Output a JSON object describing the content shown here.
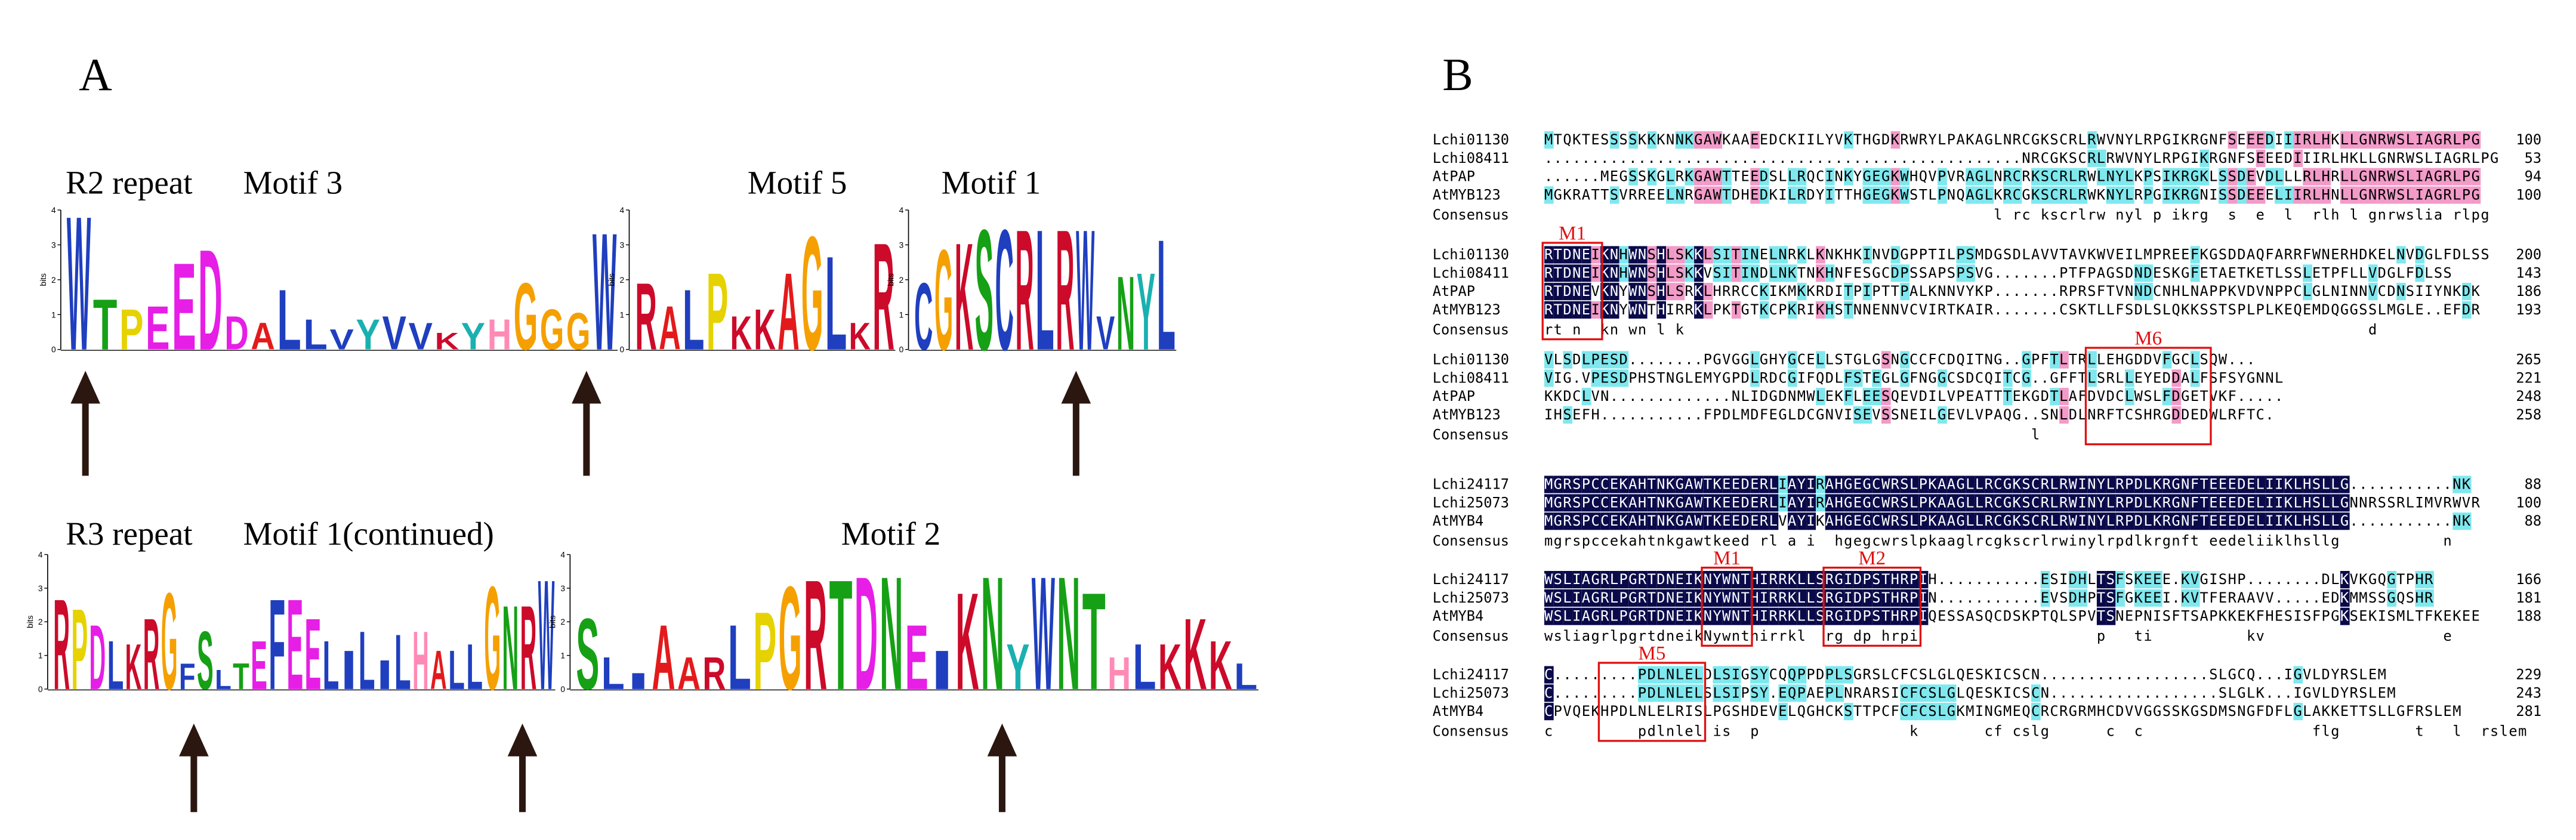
{
  "panel_a": {
    "label": "A",
    "bits_label": "bits",
    "ylim": [
      0,
      4
    ],
    "yticks": [
      0,
      1,
      2,
      3,
      4
    ],
    "titles": [
      "R2 repeat",
      "Motif 3",
      "Motif 5",
      "Motif 1",
      "R3 repeat",
      "Motif 1(continued)",
      "Motif 2"
    ],
    "logos": [
      {
        "letters": [
          "W",
          "T",
          "P",
          "E",
          "E",
          "D",
          "D",
          "A",
          "L",
          "L",
          "V",
          "Y",
          "V",
          "V",
          "K",
          "Y",
          "H",
          "G",
          "G",
          "G",
          "W"
        ],
        "heights": [
          4,
          1.5,
          1.2,
          1.3,
          2.6,
          3.0,
          1.0,
          0.8,
          1.8,
          0.9,
          0.6,
          0.9,
          1.0,
          0.8,
          0.5,
          0.8,
          0.9,
          2.0,
          1.2,
          1.1,
          3.5
        ]
      },
      {
        "letters": [
          "R",
          "A",
          "L",
          "P",
          "K",
          "K",
          "A",
          "G",
          "L",
          "K",
          "R"
        ],
        "heights": [
          2.0,
          1.3,
          1.8,
          2.3,
          1.0,
          1.2,
          2.3,
          3.4,
          2.8,
          0.8,
          3.2
        ]
      },
      {
        "letters": [
          "C",
          "G",
          "K",
          "S",
          "C",
          "R",
          "L",
          "R",
          "W",
          "V",
          "N",
          "Y",
          "L"
        ],
        "heights": [
          2.0,
          3.0,
          3.2,
          3.6,
          3.6,
          3.6,
          3.6,
          3.6,
          3.6,
          1.0,
          2.2,
          2.3,
          3.3
        ]
      },
      {
        "letters": [
          "R",
          "P",
          "D",
          "L",
          "K",
          "R",
          "G",
          "F",
          "S",
          "L",
          "T",
          "E",
          "F",
          "E",
          "E",
          "L",
          "I",
          "L",
          "I",
          "L",
          "H",
          "A",
          "L",
          "L",
          "G",
          "N",
          "R",
          "W"
        ],
        "heights": [
          2.8,
          2.5,
          2.0,
          1.5,
          1.4,
          2.2,
          3.0,
          0.8,
          1.8,
          0.6,
          0.8,
          1.5,
          2.8,
          2.8,
          2.2,
          1.5,
          1.2,
          1.8,
          0.9,
          1.7,
          1.8,
          1.2,
          1.2,
          1.4,
          3.2,
          2.6,
          2.6,
          3.4
        ]
      },
      {
        "letters": [
          "S",
          "L",
          "I",
          "A",
          "A",
          "R",
          "L",
          "P",
          "G",
          "R",
          "T",
          "D",
          "N",
          "E",
          "I",
          "K",
          "N",
          "Y",
          "W",
          "N",
          "T",
          "H",
          "L",
          "K",
          "K",
          "K",
          "L"
        ],
        "heights": [
          2.2,
          1.0,
          0.5,
          2.0,
          1.0,
          1.0,
          2.0,
          2.4,
          3.2,
          3.4,
          3.4,
          3.5,
          3.5,
          2.0,
          1.2,
          3.0,
          3.5,
          1.4,
          3.5,
          3.5,
          3.0,
          1.0,
          1.4,
          1.4,
          2.2,
          1.5,
          0.8
        ]
      }
    ]
  },
  "letter_colors": {
    "A": "#e31a1c",
    "C": "#1f3fbf",
    "D": "#e61ee6",
    "E": "#e61ee6",
    "F": "#1f3fbf",
    "G": "#f5a000",
    "H": "#ff8ab5",
    "I": "#1f3fbf",
    "K": "#cc0a2a",
    "L": "#1f3fbf",
    "M": "#1f3fbf",
    "N": "#16a016",
    "P": "#e6d200",
    "Q": "#16a016",
    "R": "#cc0a2a",
    "S": "#16a016",
    "T": "#16a016",
    "V": "#1f3fbf",
    "W": "#1f3fbf",
    "Y": "#1ab0b0"
  },
  "panel_b": {
    "label": "B",
    "consensus_label": "Consensus",
    "blocks": [
      {
        "rows": [
          {
            "name": "Lchi01130",
            "seq": "MTQKTESSSSKKKNNKGAWKAAEEDCKIILYVKTHGDKRWRYLPAKAGLNRCGKSCRLRWVNYLRPGIKRGNFSEEEDIIIRLHKLLGNRWSLIAGRLPG",
            "end": 100
          },
          {
            "name": "Lchi08411",
            "seq": "...................................................NRCGKSCRLRWVNYLRPGIKRGNFSEEEDIIIRLHKLLGNRWSLIAGRLPG",
            "end": 53
          },
          {
            "name": "AtPAP",
            "seq": "......MEGSSKGLRKGAWTTEEDSLLRQCINKYGEGKWHQVPVRAGLNRCRKSCRLRWLNYLKPSIKRGKLSSDEVDLLLRLHRLLGNRWSLIAGRLPG",
            "end": 94
          },
          {
            "name": "AtMYB123",
            "seq": "MGKRATTSVRREELNRGAWTDHEDKILRDYITTHGEGKWSTLPNQAGLKRCGKSCRLRWKNYLRPGIKRGNISSDEEELIIRLHNLLGNRWSLIAGRLPG",
            "end": 100
          }
        ],
        "consensus": "                                                l rc kscrlrw nyl p ikrg  s  e  l  rlh l gnrwslia rlpg"
      },
      {
        "rows": [
          {
            "name": "Lchi01130",
            "seq": "RTDNEIKNHWNSHLSKKLSITINELNRKLKNKHKINVDGPPTILPSMDGSDLAVVTAVKWVEILMPREEFKGSDDAQFARRFWNERHDKELNVDGLFDLSS",
            "end": 200
          },
          {
            "name": "Lchi08411",
            "seq": "RTDNEIKNHWNSHLSKKVSITINDLNKTNKHNFESGCDPSSAPSPSVG.......PTFPAGSDNDESKGFETAETKETLSSLETPFLLVDGLFDLSS",
            "end": 143
          },
          {
            "name": "AtPAP",
            "seq": "RTDNEVKNYWNSHLSRKLHRRCCKIKMKKRDITPIPTTPALKNNVYKP.......RPRSFTVNNDCNHLNAPPKVDVNPPCLGLNINNVCDNSIIYNKDK",
            "end": 186
          },
          {
            "name": "AtMYB123",
            "seq": "RTDNEIKNYWNTHIRRKLPKTGTKCPKRIKHSTNNENNVCVIRTKAIR.......CSKTLLFSDLSLQKKSSTSPLPLKEQEMDQGGSSLMGLE..EFDR",
            "end": 193
          }
        ],
        "consensus": "rt n  kn wn l k                                                                         d"
      },
      {
        "rows": [
          {
            "name": "Lchi01130",
            "seq": "VLSDLPESD........PGVGGLGHYGCELLSTGLGSNGCCFCDQITNG..GPFTLTRLLEHGDDVFGCLSQW...",
            "end": 265
          },
          {
            "name": "Lchi08411",
            "seq": "VIG.VPESDPHSTNGLEMYGPDLRDCGIFQDLFSTEGLGFNGGCSDCQITCG..GFFTLSRLLEYEDDALFSFSYGNNL",
            "end": 221
          },
          {
            "name": "AtPAP",
            "seq": "KKDCLVN.............NLIDGDNMWLEKFLEESQEVDILVPEATTTEKGDTLAFDVDCLWSLFDGETVKF.....",
            "end": 248
          },
          {
            "name": "AtMYB123",
            "seq": "IHSEFH...........FPDLMDFEGLDCGNVISEVSSNEILGEVLVPAQG..SNLDLNRFTCSHRGDDEDWLRFTC.",
            "end": 258
          }
        ],
        "consensus": "                                                    l"
      },
      {
        "rows": [
          {
            "name": "Lchi24117",
            "seq": "MGRSPCCEKAHTNKGAWTKEEDERLIAYIRAHGEGCWRSLPKAAGLLRCGKSCRLRWINYLRPDLKRGNFTEEEDELIIKLHSLLG...........NK",
            "end": 88
          },
          {
            "name": "Lchi25073",
            "seq": "MGRSPCCEKAHTNKGAWTKEEDERLIAYIRAHGEGCWRSLPKAAGLLRCGKSCRLRWINYLRPDLKRGNFTEEEDELIIKLHSLLGNNRSSRLIMVRWVR",
            "end": 100
          },
          {
            "name": "AtMYB4",
            "seq": "MGRSPCCEKAHTNKGAWTKEEDERLVAYIKAHGEGCWRSLPKAAGLLRCGKSCRLRWINYLRPDLKRGNFTEEEDELIIKLHSLLG...........NK",
            "end": 88
          }
        ],
        "consensus": "mgrspccekahtnkgawtkeed rl a i  hgegcwrslpkaaglrcgkscrlrwinylrpdlkrgnft eedeliiklhsllg           n"
      },
      {
        "rows": [
          {
            "name": "Lchi24117",
            "seq": "WSLIAGRLPGRTDNEIKNYWNTHIRRKLLSRGIDPSTHRPIH...........ESIDHLTSFSKEEE.KVGISHP........DLKVKGQGTPHR",
            "end": 166
          },
          {
            "name": "Lchi25073",
            "seq": "WSLIAGRLPGRTDNEIKNYWNTHIRRKLLSRGIDPSTHRPIN...........EVSDHPTSFGKEEI.KVTFERAAVV.....EDKMMSSGQSHR",
            "end": 181
          },
          {
            "name": "AtMYB4",
            "seq": "WSLIAGRLPGRTDNEIKNYWNTHIRRKLLSRGIDPSTHRPIQESSASQCDSKPTQLSPVTSNEPNISFTSAPKKEKFHESISFPGKSEKISMLTFKEKEE",
            "end": 188
          }
        ],
        "consensus": "wsliagrlpgrtdneikNywnthirrkl  rg dp hrpi                   p   ti          kv                   e"
      },
      {
        "rows": [
          {
            "name": "Lchi24117",
            "seq": "C.........PDLNLELDLSIGSYCQQPPDPLSGRSLCFCSLGLQESKICSCN..................SLGCQ...IGVLDYRSLEM",
            "end": 229
          },
          {
            "name": "Lchi25073",
            "seq": "C.........PDLNLELSLSIPSY.EQPAEPLNRARSICFCSLGLQESKICSCN..................SLGLK...IGVLDYRSLEM",
            "end": 243
          },
          {
            "name": "AtMYB4",
            "seq": "CPVQEKHPDLNLELRISLPGSHDEVELQGHCKSTTPCFCFCSLGKMINGMEQCRCRGRMHCDVVGGSSKGSDMSNGFDFLGLAKKETTSLLGFRSLEM",
            "end": 281
          }
        ],
        "consensus": "c         pdlnlel is  p                k       cf cslg      c  c                  flg        t   l  rslem"
      }
    ],
    "motif_labels": [
      "M1",
      "M6",
      "M1",
      "M2",
      "M5"
    ]
  }
}
